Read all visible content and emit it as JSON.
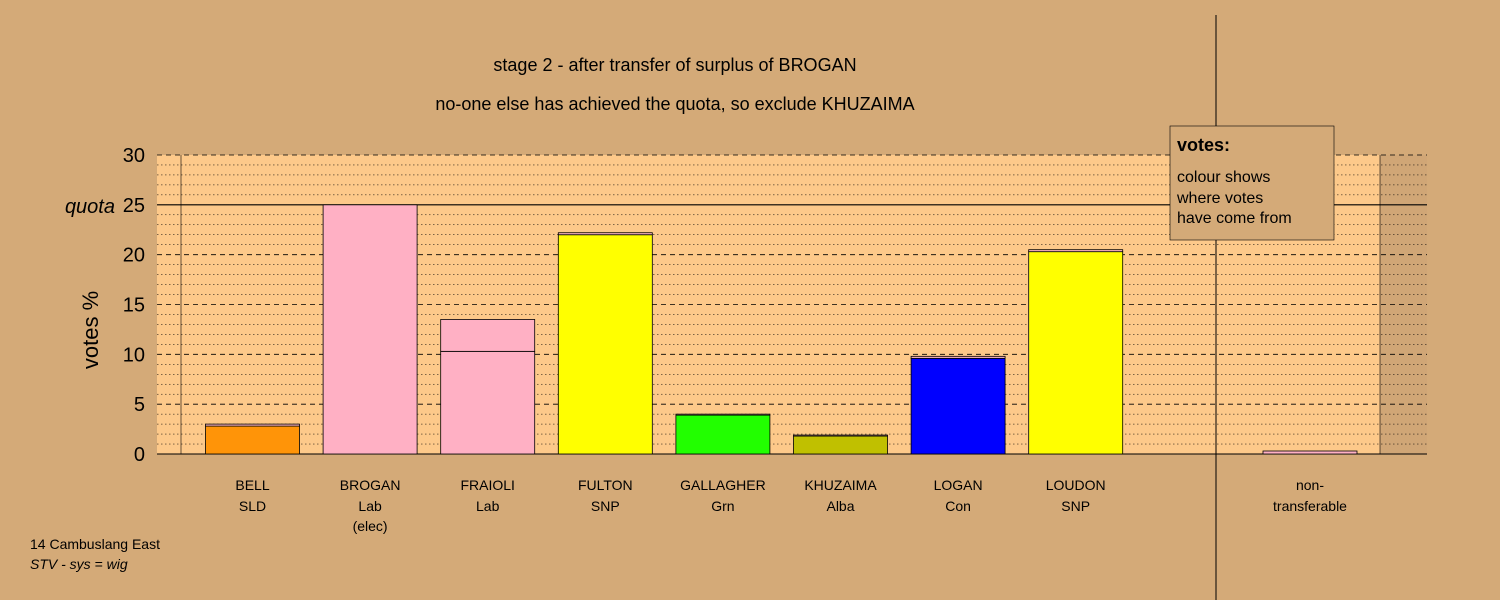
{
  "title_line1": "stage 2 - after transfer of surplus of BROGAN",
  "title_line2": "no-one else has achieved the quota, so exclude KHUZAIMA",
  "footer_line1": "14 Cambuslang East",
  "footer_line2": "STV - sys = wig",
  "legend": {
    "title": "votes:",
    "lines": [
      "colour shows",
      "where votes",
      "have come from"
    ]
  },
  "colors": {
    "background": "#D4AA78",
    "plot_area": "#FDC98A",
    "nontransferable_area": "#D0A676"
  },
  "chart_data": {
    "type": "bar",
    "ylabel": "votes %",
    "ylim": [
      0,
      30
    ],
    "yticks": [
      0,
      5,
      10,
      15,
      20,
      25,
      30
    ],
    "quota": 25,
    "quota_label": "quota",
    "candidates": [
      {
        "name": "BELL",
        "party": "SLD",
        "extra": "",
        "segments": [
          {
            "value": 2.8,
            "color": "#FF9408"
          },
          {
            "value": 0.2,
            "color": "#FFB6C1"
          }
        ]
      },
      {
        "name": "BROGAN",
        "party": "Lab",
        "extra": "(elec)",
        "segments": [
          {
            "value": 25.0,
            "color": "#FFB0C4"
          }
        ]
      },
      {
        "name": "FRAIOLI",
        "party": "Lab",
        "extra": "",
        "segments": [
          {
            "value": 10.3,
            "color": "#FFB0C4"
          },
          {
            "value": 3.2,
            "color": "#FFB0C4"
          }
        ]
      },
      {
        "name": "FULTON",
        "party": "SNP",
        "extra": "",
        "segments": [
          {
            "value": 22.0,
            "color": "#FFFF00"
          },
          {
            "value": 0.2,
            "color": "#FFB6C1"
          }
        ]
      },
      {
        "name": "GALLAGHER",
        "party": "Grn",
        "extra": "",
        "segments": [
          {
            "value": 3.9,
            "color": "#22FF00"
          },
          {
            "value": 0.1,
            "color": "#FFB6C1"
          }
        ]
      },
      {
        "name": "KHUZAIMA",
        "party": "Alba",
        "extra": "",
        "segments": [
          {
            "value": 1.8,
            "color": "#C0C000"
          },
          {
            "value": 0.1,
            "color": "#FFB6C1"
          }
        ]
      },
      {
        "name": "LOGAN",
        "party": "Con",
        "extra": "",
        "segments": [
          {
            "value": 9.6,
            "color": "#0000FF"
          },
          {
            "value": 0.2,
            "color": "#FFB6C1"
          }
        ]
      },
      {
        "name": "LOUDON",
        "party": "SNP",
        "extra": "",
        "segments": [
          {
            "value": 20.3,
            "color": "#FFFF00"
          },
          {
            "value": 0.2,
            "color": "#FFB6C1"
          }
        ]
      }
    ],
    "nontransferable": {
      "label_line1": "non-",
      "label_line2": "transferable",
      "value": 0.3,
      "color": "#FFB0C4"
    }
  }
}
